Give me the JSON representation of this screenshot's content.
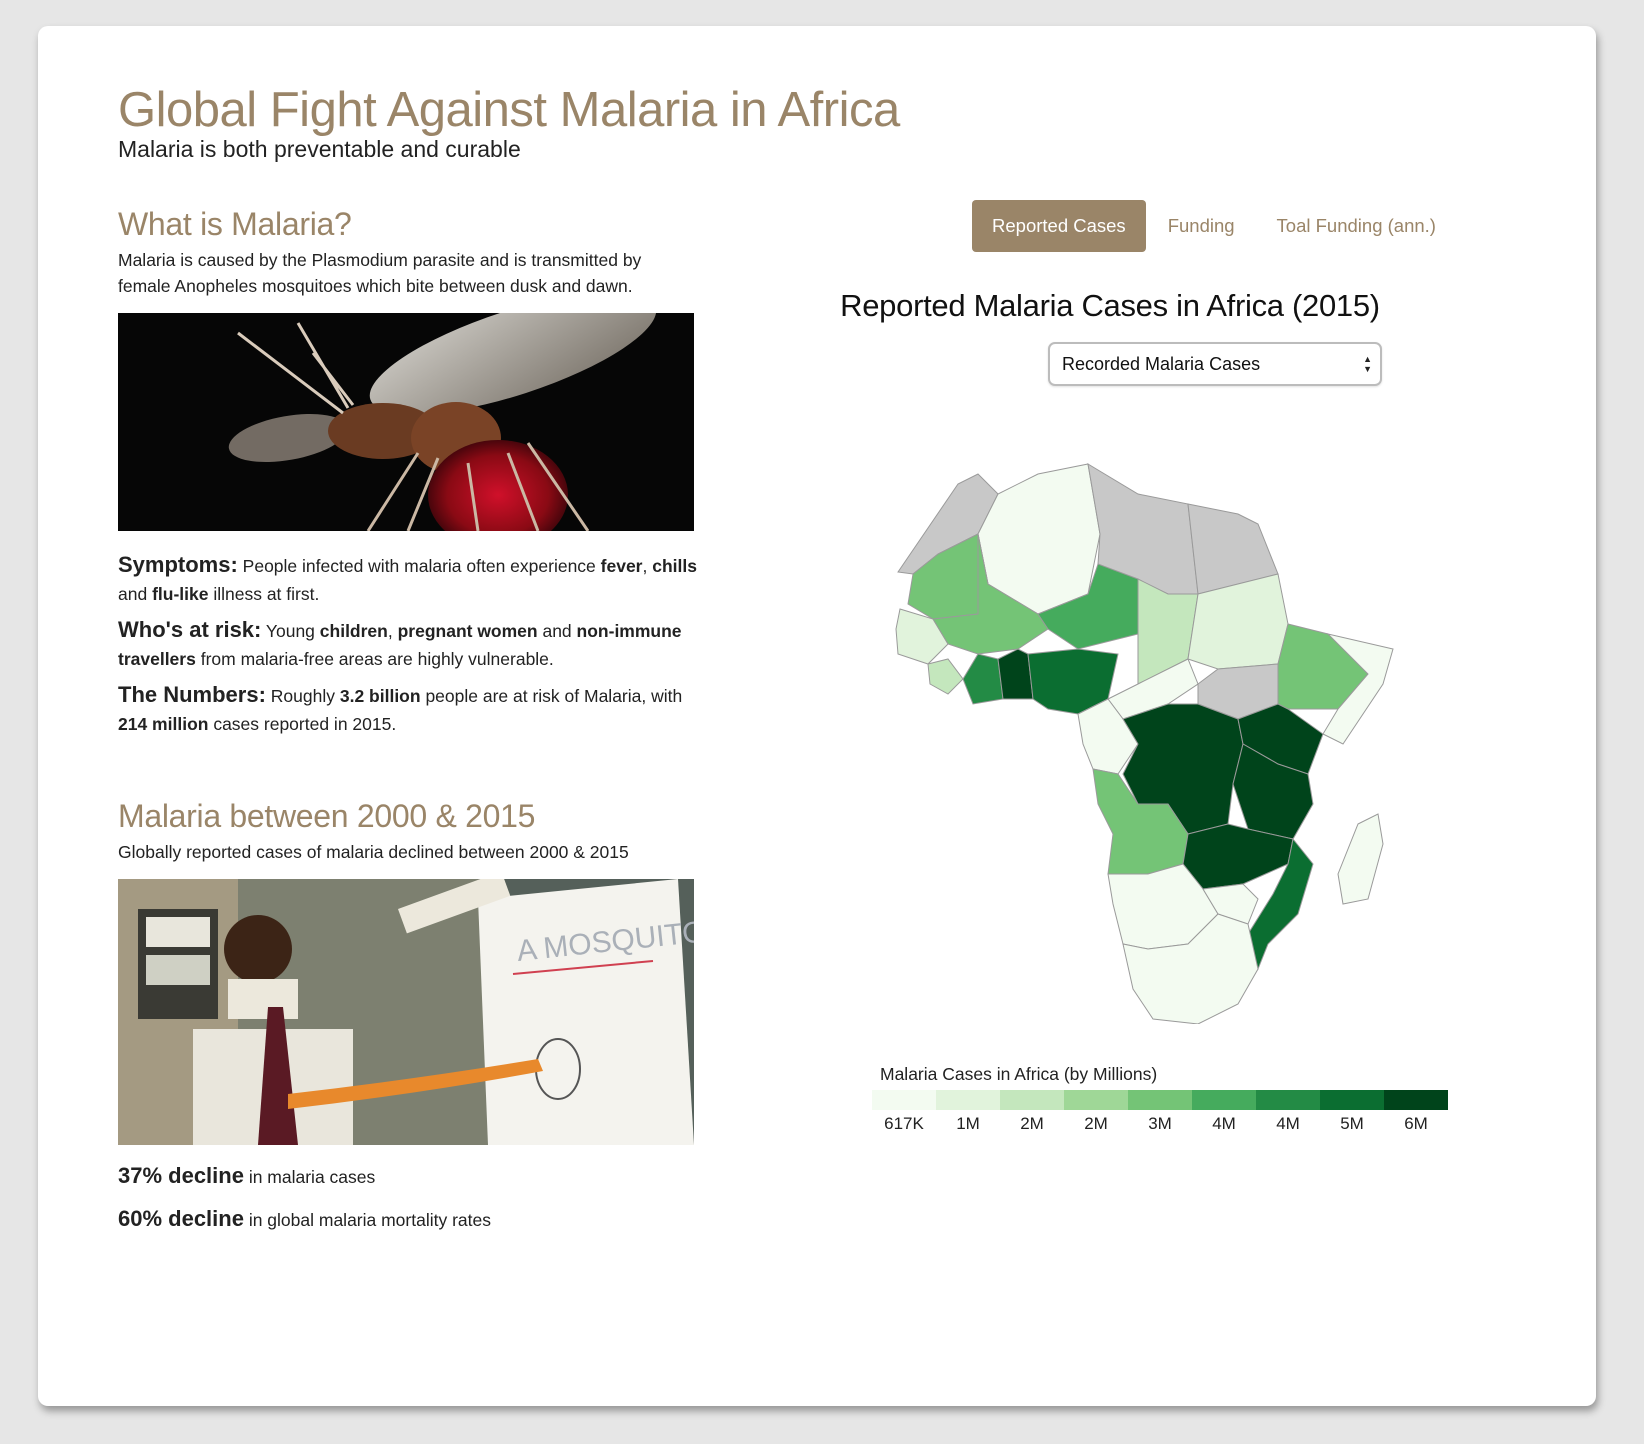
{
  "header": {
    "title": "Global Fight Against Malaria in Africa",
    "subtitle": "Malaria is both preventable and curable"
  },
  "what": {
    "heading": "What is Malaria?",
    "intro": "Malaria is caused by the Plasmodium parasite and is transmitted by female Anopheles mosquitoes which bite between dusk and dawn."
  },
  "facts": {
    "symptoms": {
      "label": "Symptoms:",
      "t1": " People infected with malaria often experience ",
      "b1": "fever",
      "t2": ", ",
      "b2": "chills",
      "t3": " and ",
      "b3": "flu-like",
      "t4": " illness at first."
    },
    "risk": {
      "label": "Who's at risk:",
      "t1": " Young ",
      "b1": "children",
      "t2": ", ",
      "b2": "pregnant women",
      "t3": " and ",
      "b3": "non-immune travellers",
      "t4": " from malaria-free areas are highly vulnerable."
    },
    "numbers": {
      "label": "The Numbers:",
      "t1": " Roughly ",
      "b1": "3.2 billion",
      "t2": " people are at risk of Malaria, with ",
      "b2": "214 million",
      "t3": " cases reported in 2015."
    }
  },
  "trend": {
    "heading": "Malaria between 2000 & 2015",
    "intro": "Globally reported cases of malaria declined between 2000 & 2015",
    "photo_board_text": "A MOSQUITO",
    "stats": [
      {
        "big": "37% decline",
        "text": " in malaria cases"
      },
      {
        "big": "60% decline",
        "text": " in global malaria mortality rates"
      }
    ]
  },
  "tabs": [
    {
      "label": "Reported Cases",
      "active": true
    },
    {
      "label": "Funding",
      "active": false
    },
    {
      "label": "Toal Funding (ann.)",
      "active": false
    }
  ],
  "map": {
    "title": "Reported Malaria Cases in Africa (2015)",
    "select_value": "Recorded Malaria Cases",
    "legend_title": "Malaria Cases in Africa (by Millions)",
    "legend": [
      {
        "label": "617K",
        "color": "#f3fbf1"
      },
      {
        "label": "1M",
        "color": "#e1f3dc"
      },
      {
        "label": "2M",
        "color": "#c4e7bd"
      },
      {
        "label": "2M",
        "color": "#9fd797"
      },
      {
        "label": "3M",
        "color": "#74c476"
      },
      {
        "label": "4M",
        "color": "#45ab5d"
      },
      {
        "label": "4M",
        "color": "#238b45"
      },
      {
        "label": "5M",
        "color": "#0b6e31"
      },
      {
        "label": "6M",
        "color": "#00441b"
      }
    ],
    "nodata_color": "#c8c8c8"
  }
}
